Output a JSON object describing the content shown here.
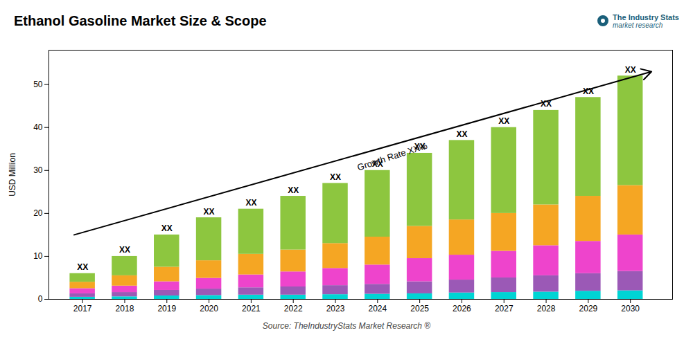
{
  "chart_data": {
    "type": "bar",
    "stacked": true,
    "title": "Ethanol Gasoline Market Size & Scope",
    "ylabel": "USD Million",
    "caption": "Source: TheIndustryStats Market Research ®",
    "logo": [
      "The Industry Stats",
      "market research"
    ],
    "x": [
      2017,
      2018,
      2019,
      2020,
      2021,
      2022,
      2023,
      2024,
      2025,
      2026,
      2027,
      2028,
      2029,
      2030
    ],
    "series": [
      {
        "color": "#00d4d4",
        "values": [
          0.5,
          0.6,
          0.8,
          0.9,
          1.0,
          1.0,
          1.1,
          1.2,
          1.3,
          1.5,
          1.6,
          1.7,
          1.9,
          2.0
        ]
      },
      {
        "color": "#9b59b6",
        "values": [
          0.8,
          1.0,
          1.3,
          1.5,
          1.7,
          1.9,
          2.1,
          2.3,
          2.8,
          3.0,
          3.4,
          3.8,
          4.1,
          4.5
        ]
      },
      {
        "color": "#ee44cc",
        "values": [
          1.2,
          1.5,
          2.0,
          2.5,
          3.0,
          3.5,
          4.0,
          4.5,
          5.4,
          5.8,
          6.2,
          7.0,
          7.5,
          8.5
        ]
      },
      {
        "color": "#f5a623",
        "values": [
          1.5,
          2.4,
          3.4,
          4.1,
          4.8,
          5.1,
          5.8,
          6.5,
          7.5,
          8.2,
          8.8,
          9.5,
          10.5,
          11.5
        ]
      },
      {
        "color": "#8dc63f",
        "values": [
          2.0,
          4.5,
          7.5,
          10.0,
          10.5,
          12.5,
          14.0,
          15.5,
          17.0,
          18.5,
          20.0,
          22.0,
          23.0,
          25.5
        ]
      }
    ],
    "total_labels": [
      "XX",
      "XX",
      "XX",
      "XX",
      "XX",
      "XX",
      "XX",
      "XX",
      "XX",
      "XX",
      "XX",
      "XX",
      "XX",
      "XX"
    ],
    "annotations": [
      {
        "text": "Growth Rate XX%",
        "x": 2023.5,
        "y": 32
      }
    ],
    "arrow": {
      "x1": 2016.8,
      "y1": 15,
      "x2": 2030.5,
      "y2": 53
    },
    "xlim": [
      2016.2,
      2031.0
    ],
    "xticks": [
      2017,
      2018,
      2019,
      2020,
      2021,
      2022,
      2023,
      2024,
      2025,
      2026,
      2027,
      2028,
      2029,
      2030
    ],
    "ylim": [
      0,
      58
    ],
    "yticks": [
      0,
      10,
      20,
      30,
      40,
      50
    ],
    "grid": false
  }
}
